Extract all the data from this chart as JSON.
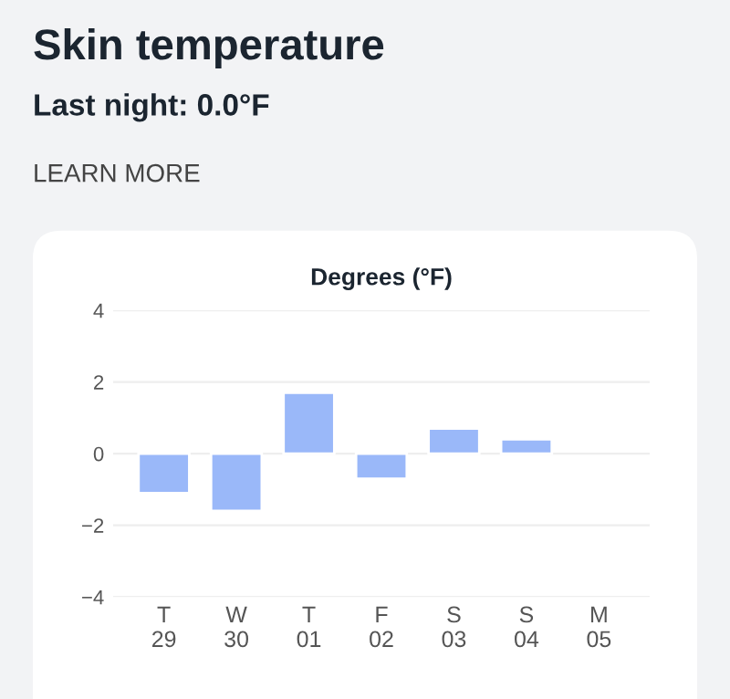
{
  "chart_data": {
    "type": "bar",
    "title": "Skin temperature",
    "subtitle": "Last night: 0.0°F",
    "annotations": [
      "LEARN MORE"
    ],
    "ylabel": "Degrees (°F)",
    "categories": [
      "T\n29",
      "W\n30",
      "T\n01",
      "F\n02",
      "S\n03",
      "S\n04",
      "M\n05"
    ],
    "values": [
      -1.1,
      -1.6,
      1.7,
      -0.7,
      0.7,
      0.4,
      null
    ],
    "color": "#9ab8f9",
    "ylim": [
      -4,
      4
    ],
    "yticks": [
      -4,
      -2,
      0,
      2,
      4
    ],
    "grid": "y"
  }
}
